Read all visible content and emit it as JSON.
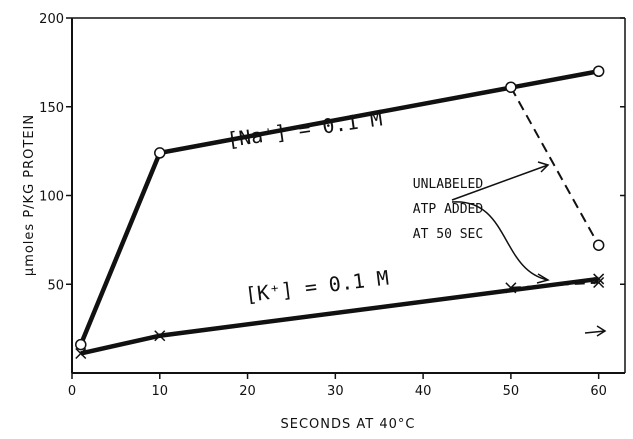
{
  "chart_data": {
    "type": "line",
    "title": "",
    "xlabel": "SECONDS AT 40°C",
    "ylabel": "μmoles P/KG PROTEIN",
    "xlim": [
      0,
      63
    ],
    "ylim": [
      0,
      200
    ],
    "xticks": [
      0,
      10,
      20,
      30,
      40,
      50,
      60
    ],
    "yticks": [
      50,
      100,
      150,
      200
    ],
    "grid": false,
    "series": [
      {
        "name": "[Na⁺] = 0.1 M",
        "marker": "circle",
        "style": "solid",
        "points": [
          [
            1,
            16
          ],
          [
            10,
            124
          ],
          [
            60,
            170
          ]
        ]
      },
      {
        "name": "[K⁺] = 0.1 M",
        "marker": "x",
        "style": "solid",
        "points": [
          [
            1,
            11
          ],
          [
            10,
            21
          ],
          [
            60,
            53
          ]
        ]
      },
      {
        "name": "",
        "marker": "circle",
        "style": "dashed",
        "points": [
          [
            50,
            161
          ],
          [
            60,
            72
          ]
        ]
      },
      {
        "name": "",
        "marker": "x",
        "style": "dashed",
        "points": [
          [
            50,
            48
          ],
          [
            60,
            51
          ]
        ]
      }
    ],
    "annotations": {
      "label_na": "[Na⁺] = 0.1 M",
      "label_k": "[K⁺] = 0.1 M",
      "note_lines": [
        "UNLABELED",
        "ATP ADDED",
        "AT 50 SEC"
      ]
    }
  }
}
